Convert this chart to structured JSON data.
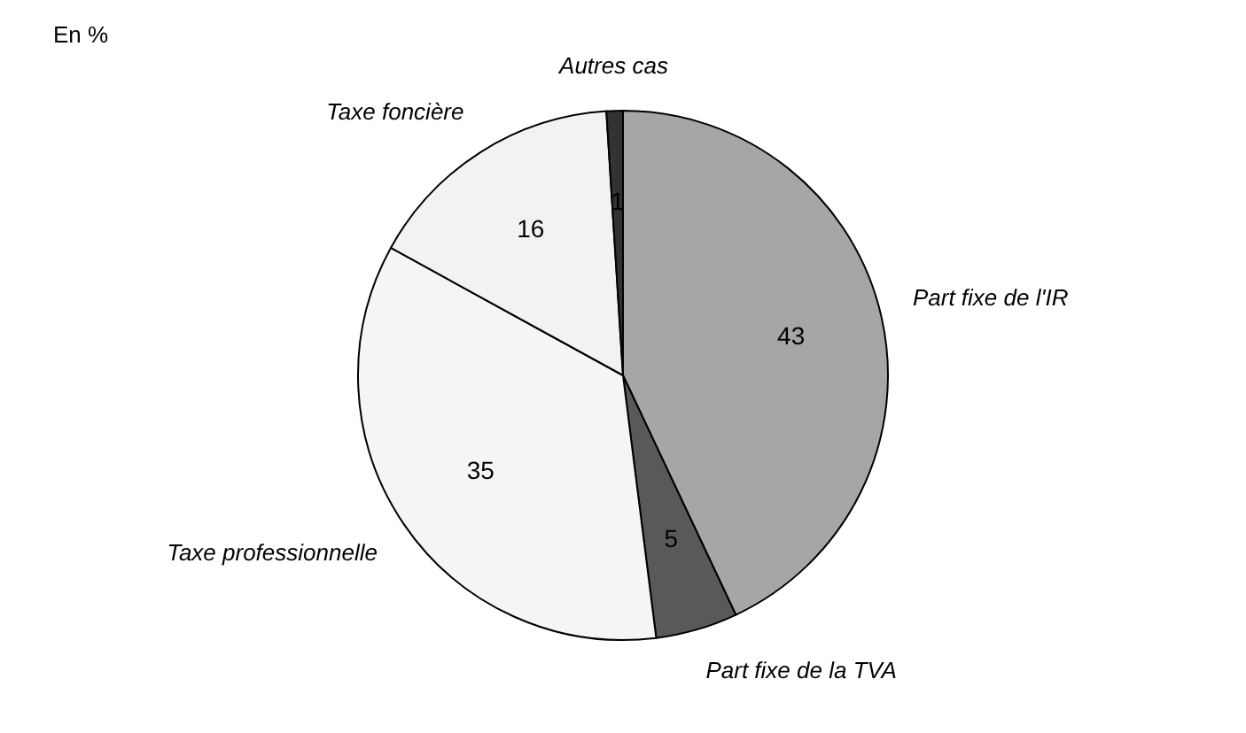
{
  "chart_data": {
    "type": "pie",
    "title": "En %",
    "categories": [
      "Part fixe de l'IR",
      "Part fixe de la TVA",
      "Taxe professionnelle",
      "Taxe foncière",
      "Autres cas"
    ],
    "values": [
      43,
      5,
      35,
      16,
      1
    ],
    "colors": [
      "#a6a6a6",
      "#595959",
      "#f5f5f5",
      "#f2f2f2",
      "#333333"
    ],
    "data_labels": true,
    "legend": false
  }
}
